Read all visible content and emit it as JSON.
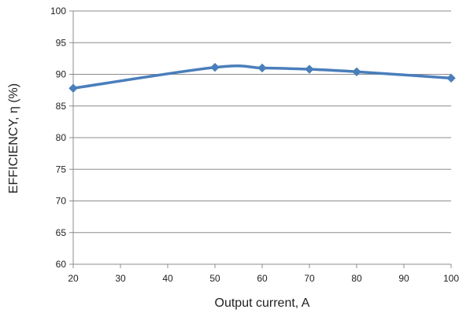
{
  "chart_data": {
    "type": "line",
    "xlabel": "Output current, A",
    "ylabel": "EFFICIENCY, η (%)",
    "xlim": [
      20,
      100
    ],
    "ylim": [
      60,
      100
    ],
    "x_ticks": [
      20,
      30,
      40,
      50,
      60,
      70,
      80,
      90,
      100
    ],
    "y_ticks": [
      60,
      65,
      70,
      75,
      80,
      85,
      90,
      95,
      100
    ],
    "grid": "horizontal",
    "series": [
      {
        "x": [
          20,
          50,
          60,
          70,
          80,
          100
        ],
        "y": [
          87.8,
          91.1,
          91.0,
          90.8,
          90.4,
          89.4
        ],
        "color": "#4a7ebb",
        "marker": "diamond"
      }
    ]
  }
}
